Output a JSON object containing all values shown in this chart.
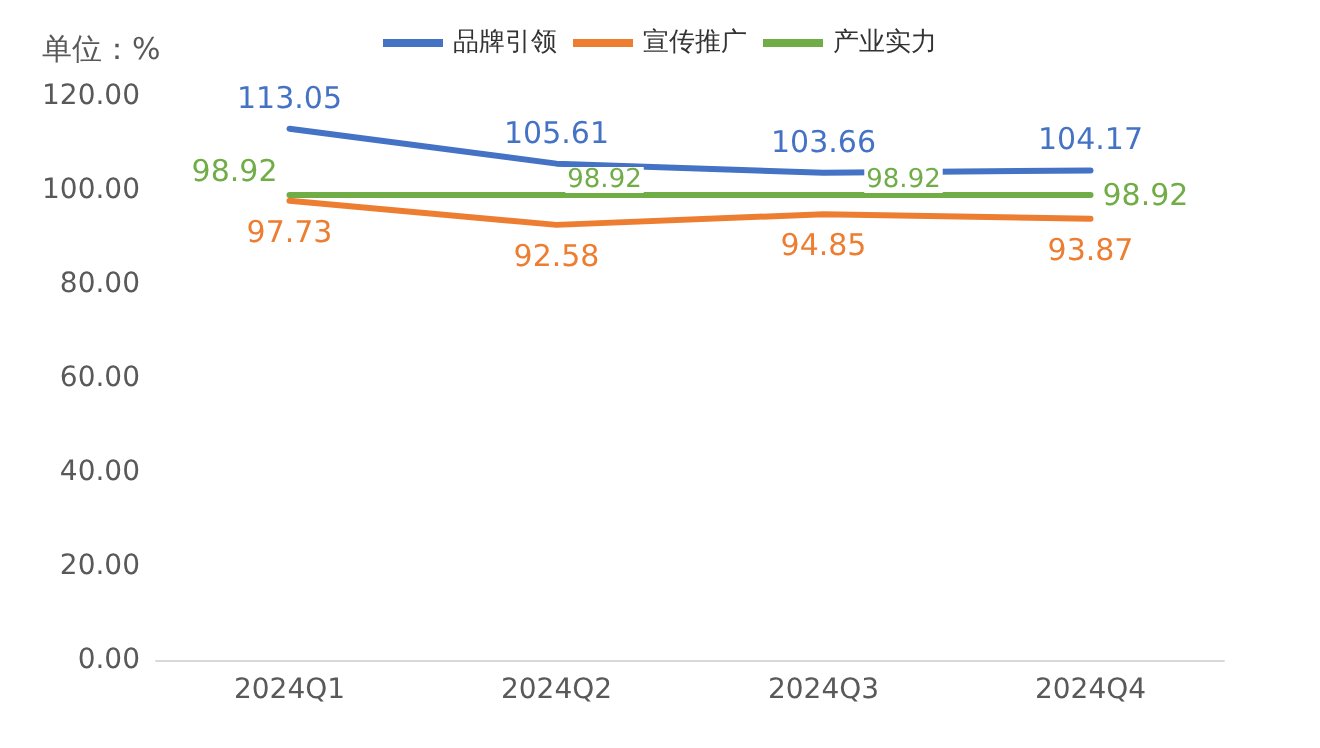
{
  "chart_data": {
    "type": "line",
    "ylabel": "单位：%",
    "categories": [
      "2024Q1",
      "2024Q2",
      "2024Q3",
      "2024Q4"
    ],
    "series": [
      {
        "name": "品牌引领",
        "color": "#4472c4",
        "values": [
          113.05,
          105.61,
          103.66,
          104.17
        ]
      },
      {
        "name": "宣传推广",
        "color": "#ed7d31",
        "values": [
          97.73,
          92.58,
          94.85,
          93.87
        ]
      },
      {
        "name": "产业实力",
        "color": "#70ad47",
        "values": [
          98.92,
          98.92,
          98.92,
          98.92
        ]
      }
    ],
    "ylim": [
      0,
      120
    ],
    "yticks": [
      {
        "value": 0,
        "label": "0.00"
      },
      {
        "value": 20,
        "label": "20.00"
      },
      {
        "value": 40,
        "label": "40.00"
      },
      {
        "value": 60,
        "label": "60.00"
      },
      {
        "value": 80,
        "label": "80.00"
      },
      {
        "value": 100,
        "label": "100.00"
      },
      {
        "value": 120,
        "label": "120.00"
      }
    ],
    "grid": false,
    "legend": "top",
    "marker": "none",
    "line_style": "solid",
    "data_labels": true
  }
}
